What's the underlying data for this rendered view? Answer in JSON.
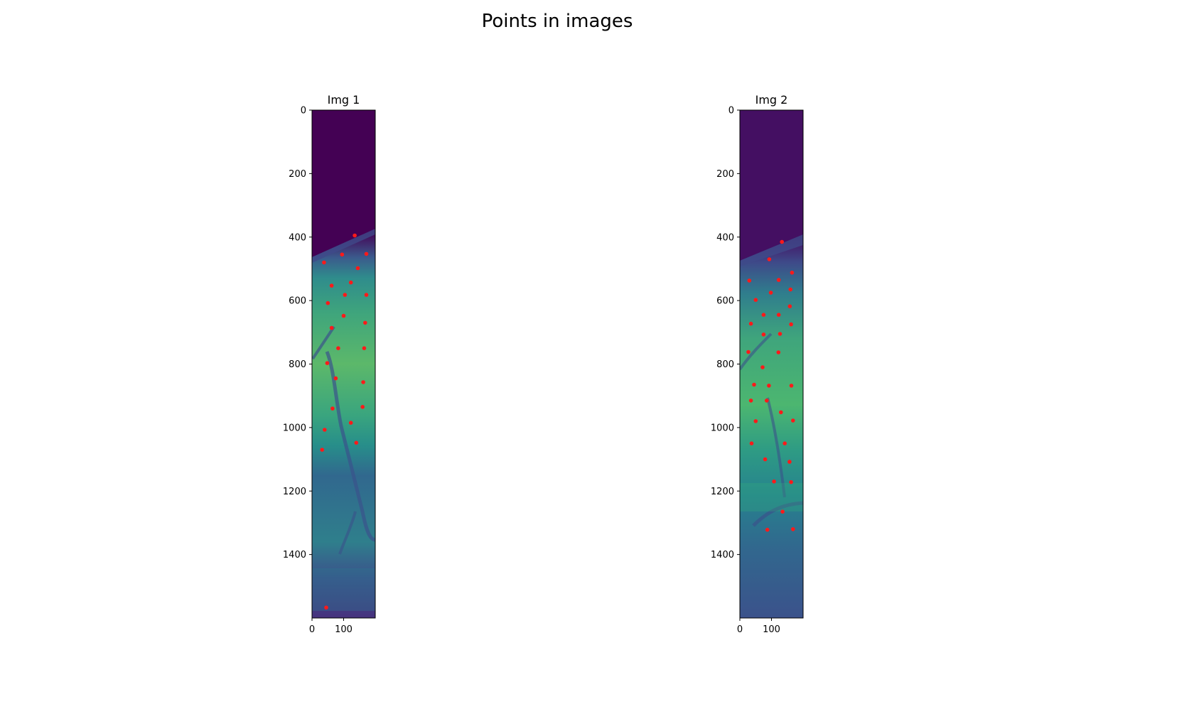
{
  "figure": {
    "title": "Points in images"
  },
  "colors": {
    "point": "#ff1a1a",
    "background_dark": "#440154",
    "tissue_mid": "#31688e",
    "tissue_bright": "#35b779",
    "tissue_hot": "#a8db34"
  },
  "chart_data": [
    {
      "type": "scatter",
      "title": "Img 1",
      "image_shape": [
        1600,
        200
      ],
      "xlim": [
        0,
        200
      ],
      "ylim": [
        1600,
        0
      ],
      "x_ticks": [
        0,
        100
      ],
      "y_ticks": [
        0,
        200,
        400,
        600,
        800,
        1000,
        1200,
        1400
      ],
      "background": "viridis image",
      "points": [
        [
          135,
          395
        ],
        [
          38,
          480
        ],
        [
          95,
          455
        ],
        [
          172,
          453
        ],
        [
          145,
          498
        ],
        [
          123,
          543
        ],
        [
          62,
          553
        ],
        [
          104,
          582
        ],
        [
          172,
          582
        ],
        [
          50,
          608
        ],
        [
          100,
          648
        ],
        [
          168,
          670
        ],
        [
          62,
          686
        ],
        [
          83,
          750
        ],
        [
          165,
          750
        ],
        [
          48,
          797
        ],
        [
          75,
          845
        ],
        [
          162,
          857
        ],
        [
          65,
          940
        ],
        [
          160,
          935
        ],
        [
          123,
          985
        ],
        [
          40,
          1007
        ],
        [
          140,
          1048
        ],
        [
          32,
          1070
        ],
        [
          45,
          1567
        ]
      ]
    },
    {
      "type": "scatter",
      "title": "Img 2",
      "image_shape": [
        1600,
        200
      ],
      "xlim": [
        0,
        200
      ],
      "ylim": [
        1600,
        0
      ],
      "x_ticks": [
        0,
        100
      ],
      "y_ticks": [
        0,
        200,
        400,
        600,
        800,
        1000,
        1200,
        1400
      ],
      "background": "viridis image",
      "points": [
        [
          133,
          415
        ],
        [
          93,
          470
        ],
        [
          165,
          512
        ],
        [
          30,
          537
        ],
        [
          123,
          535
        ],
        [
          160,
          565
        ],
        [
          98,
          575
        ],
        [
          50,
          598
        ],
        [
          158,
          618
        ],
        [
          75,
          645
        ],
        [
          123,
          645
        ],
        [
          35,
          673
        ],
        [
          162,
          675
        ],
        [
          75,
          707
        ],
        [
          127,
          705
        ],
        [
          27,
          762
        ],
        [
          122,
          763
        ],
        [
          72,
          810
        ],
        [
          45,
          865
        ],
        [
          92,
          868
        ],
        [
          163,
          868
        ],
        [
          35,
          915
        ],
        [
          85,
          915
        ],
        [
          130,
          952
        ],
        [
          50,
          980
        ],
        [
          168,
          978
        ],
        [
          37,
          1050
        ],
        [
          142,
          1050
        ],
        [
          80,
          1100
        ],
        [
          157,
          1108
        ],
        [
          108,
          1170
        ],
        [
          162,
          1172
        ],
        [
          135,
          1265
        ],
        [
          87,
          1322
        ],
        [
          168,
          1320
        ]
      ]
    }
  ]
}
